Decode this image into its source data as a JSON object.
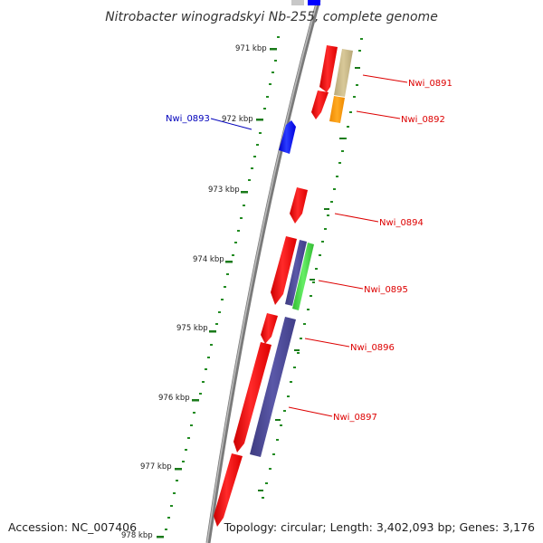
{
  "title": "Nitrobacter winogradskyi Nb-255, complete genome",
  "footer": {
    "accession": "Accession: NC_007406",
    "summary": "Topology: circular; Length: 3,402,093 bp; Genes: 3,176"
  },
  "ticks": [
    "971 kbp",
    "972 kbp",
    "973 kbp",
    "974 kbp",
    "975 kbp",
    "976 kbp",
    "977 kbp",
    "978 kbp"
  ],
  "genes": [
    {
      "label": "Nwi_0891",
      "color": "#dd0000"
    },
    {
      "label": "Nwi_0892",
      "color": "#dd0000"
    },
    {
      "label": "Nwi_0893",
      "color": "#0000bb"
    },
    {
      "label": "Nwi_0894",
      "color": "#dd0000"
    },
    {
      "label": "Nwi_0895",
      "color": "#dd0000"
    },
    {
      "label": "Nwi_0896",
      "color": "#dd0000"
    },
    {
      "label": "Nwi_0897",
      "color": "#dd0000"
    }
  ],
  "colors": {
    "backbone": "#808080",
    "forward_cds": "#ff0000",
    "reverse_cds": "#0000ff",
    "tick": "#1a7a1a",
    "dot": "#228b22",
    "olive": "#c8b888",
    "orange": "#ff9900",
    "purple": "#4a4890",
    "green": "#44cc44"
  }
}
